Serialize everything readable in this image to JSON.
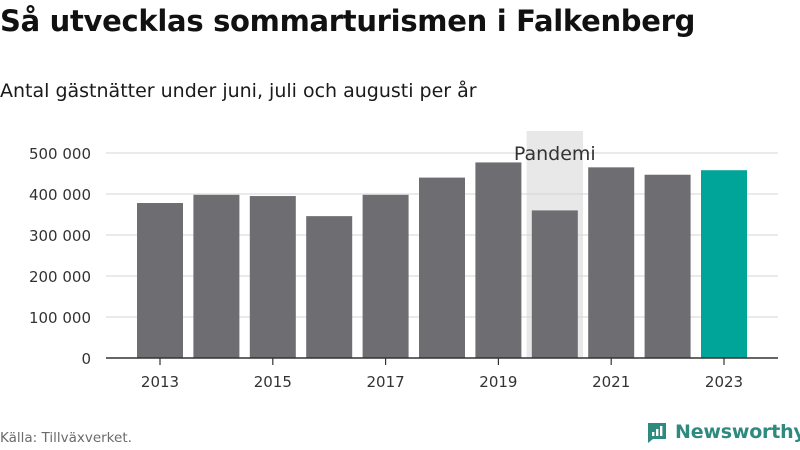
{
  "header": {
    "title": "Så utvecklas sommarturismen i Falkenberg",
    "subtitle": "Antal gästnätter under juni, juli och augusti per år"
  },
  "footer": {
    "source": "Källa: Tillväxverket.",
    "brand": "Newsworthy"
  },
  "colors": {
    "bar": "#6e6d72",
    "highlight": "#00a59a",
    "pandemic_band": "#e8e8e8",
    "grid": "#d4d4d4",
    "axis": "#333333",
    "text": "#333333",
    "brand": "#2e8a7e"
  },
  "icons": {
    "brand_logo": "newsworthy-logo-icon"
  },
  "chart_data": {
    "type": "bar",
    "title": "Så utvecklas sommarturismen i Falkenberg",
    "subtitle": "Antal gästnätter under juni, juli och augusti per år",
    "xlabel": "",
    "ylabel": "",
    "categories": [
      "2013",
      "2014",
      "2015",
      "2016",
      "2017",
      "2018",
      "2019",
      "2020",
      "2021",
      "2022",
      "2023"
    ],
    "values": [
      378000,
      398000,
      395000,
      346000,
      398000,
      440000,
      477000,
      360000,
      465000,
      447000,
      458000
    ],
    "highlight_category": "2023",
    "x_tick_labels": [
      "2013",
      "2015",
      "2017",
      "2019",
      "2021",
      "2023"
    ],
    "y_ticks": [
      0,
      100000,
      200000,
      300000,
      400000,
      500000
    ],
    "y_tick_labels": [
      "0",
      "100 000",
      "200 000",
      "300 000",
      "400 000",
      "500 000"
    ],
    "ylim": [
      0,
      500000
    ],
    "grid": true,
    "legend": "none",
    "annotations": [
      {
        "text": "Pandemi",
        "from_category": "2020",
        "to_category": "2021"
      }
    ]
  }
}
